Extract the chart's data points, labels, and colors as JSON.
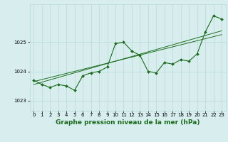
{
  "title": "Graphe pression niveau de la mer (hPa)",
  "bg_color": "#d8eeee",
  "grid_color": "#b8d8d8",
  "line_color": "#1a6b1a",
  "xlim": [
    -0.5,
    23.5
  ],
  "ylim": [
    1022.65,
    1026.3
  ],
  "yticks": [
    1023,
    1024,
    1025
  ],
  "xticks": [
    0,
    1,
    2,
    3,
    4,
    5,
    6,
    7,
    8,
    9,
    10,
    11,
    12,
    13,
    14,
    15,
    16,
    17,
    18,
    19,
    20,
    21,
    22,
    23
  ],
  "x": [
    0,
    1,
    2,
    3,
    4,
    5,
    6,
    7,
    8,
    9,
    10,
    11,
    12,
    13,
    14,
    15,
    16,
    17,
    18,
    19,
    20,
    21,
    22,
    23
  ],
  "y_main": [
    1023.7,
    1023.55,
    1023.45,
    1023.55,
    1023.5,
    1023.35,
    1023.85,
    1023.95,
    1024.0,
    1024.15,
    1024.95,
    1025.0,
    1024.7,
    1024.55,
    1024.0,
    1023.95,
    1024.3,
    1024.25,
    1024.4,
    1024.35,
    1024.6,
    1025.35,
    1025.9,
    1025.8
  ],
  "y_trend1": [
    1023.65,
    1023.72,
    1023.79,
    1023.86,
    1023.93,
    1024.0,
    1024.07,
    1024.14,
    1024.21,
    1024.28,
    1024.35,
    1024.42,
    1024.49,
    1024.56,
    1024.63,
    1024.7,
    1024.77,
    1024.84,
    1024.91,
    1024.98,
    1025.05,
    1025.12,
    1025.19,
    1025.26
  ],
  "y_trend2": [
    1023.55,
    1023.63,
    1023.71,
    1023.79,
    1023.87,
    1023.95,
    1024.03,
    1024.11,
    1024.19,
    1024.27,
    1024.35,
    1024.43,
    1024.51,
    1024.59,
    1024.67,
    1024.75,
    1024.83,
    1024.91,
    1024.99,
    1025.07,
    1025.15,
    1025.23,
    1025.31,
    1025.39
  ],
  "tick_fontsize": 5.0,
  "title_fontsize": 6.5,
  "marker_size": 2.0,
  "line_width": 0.8
}
